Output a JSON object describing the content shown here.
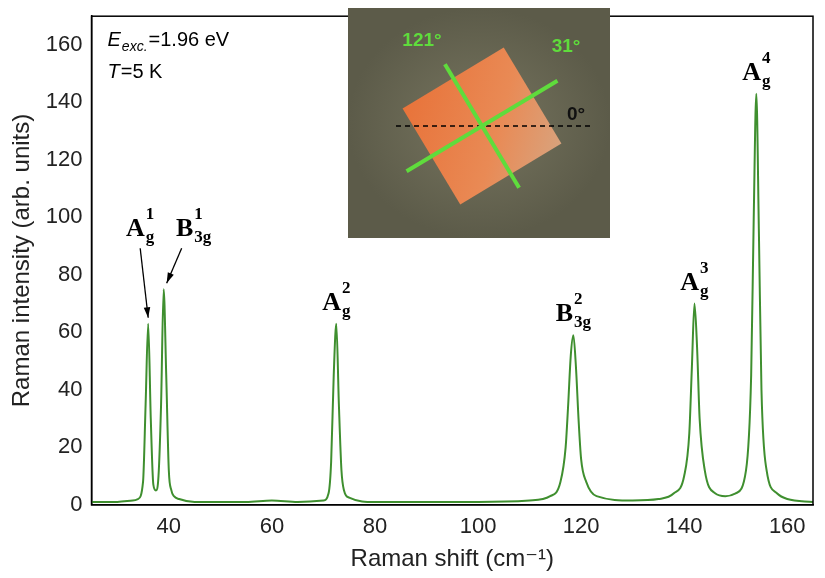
{
  "chart_data": {
    "type": "line",
    "x": [
      25,
      30,
      33,
      34,
      35,
      35.5,
      36,
      36.5,
      37,
      37.5,
      38,
      38.5,
      39,
      39.5,
      40,
      40.5,
      41,
      42,
      45,
      50,
      55,
      60,
      65,
      70,
      71,
      71.5,
      72,
      72.5,
      73,
      73.5,
      74,
      75,
      80,
      90,
      100,
      110,
      114,
      116,
      117,
      117.5,
      118,
      118.5,
      119,
      119.5,
      120,
      121,
      123,
      130,
      135,
      138,
      140,
      141,
      141.5,
      142,
      142.5,
      143,
      144,
      146,
      148,
      150,
      152,
      153,
      153.5,
      154,
      154.5,
      155,
      156,
      158,
      160,
      165
    ],
    "values": [
      1,
      1,
      1.5,
      2,
      8,
      35,
      63,
      30,
      7,
      5,
      10,
      35,
      75,
      45,
      12,
      5,
      3,
      2,
      1,
      1,
      1,
      1.5,
      1,
      1.5,
      4,
      15,
      45,
      63,
      35,
      12,
      5,
      2.5,
      1,
      1,
      1,
      1.5,
      3,
      8,
      20,
      35,
      52,
      59,
      48,
      30,
      16,
      8,
      3,
      1.5,
      2,
      4,
      10,
      25,
      48,
      70,
      55,
      30,
      12,
      4,
      3,
      4,
      12,
      45,
      100,
      143,
      95,
      40,
      12,
      4,
      2,
      1
    ],
    "color": "#3f8f2f",
    "xlabel": "Raman shift (cm⁻¹)",
    "ylabel": "Raman intensity (arb. units)",
    "xlim": [
      25,
      165
    ],
    "ylim": [
      0,
      170
    ],
    "xticks": [
      40,
      60,
      80,
      100,
      120,
      140,
      160
    ],
    "yticks": [
      0,
      20,
      40,
      60,
      80,
      100,
      120,
      140,
      160
    ],
    "grid": false,
    "annotations": [
      {
        "text": "A",
        "sub": "g",
        "sup": "1",
        "x": 36,
        "y": 63
      },
      {
        "text": "B",
        "sub": "3g",
        "sup": "1",
        "x": 39,
        "y": 75
      },
      {
        "text": "A",
        "sub": "g",
        "sup": "2",
        "x": 72.5,
        "y": 63
      },
      {
        "text": "B",
        "sub": "3g",
        "sup": "2",
        "x": 118.5,
        "y": 59
      },
      {
        "text": "A",
        "sub": "g",
        "sup": "3",
        "x": 142,
        "y": 70
      },
      {
        "text": "A",
        "sub": "g",
        "sup": "4",
        "x": 154,
        "y": 143
      }
    ],
    "notes": [
      {
        "italic": "E",
        "sub": "exc.",
        "text": "=1.96 eV"
      },
      {
        "italic": "T",
        "text": "=5 K"
      }
    ],
    "inset": {
      "labels": [
        "121°",
        "31°",
        "0°"
      ]
    }
  }
}
